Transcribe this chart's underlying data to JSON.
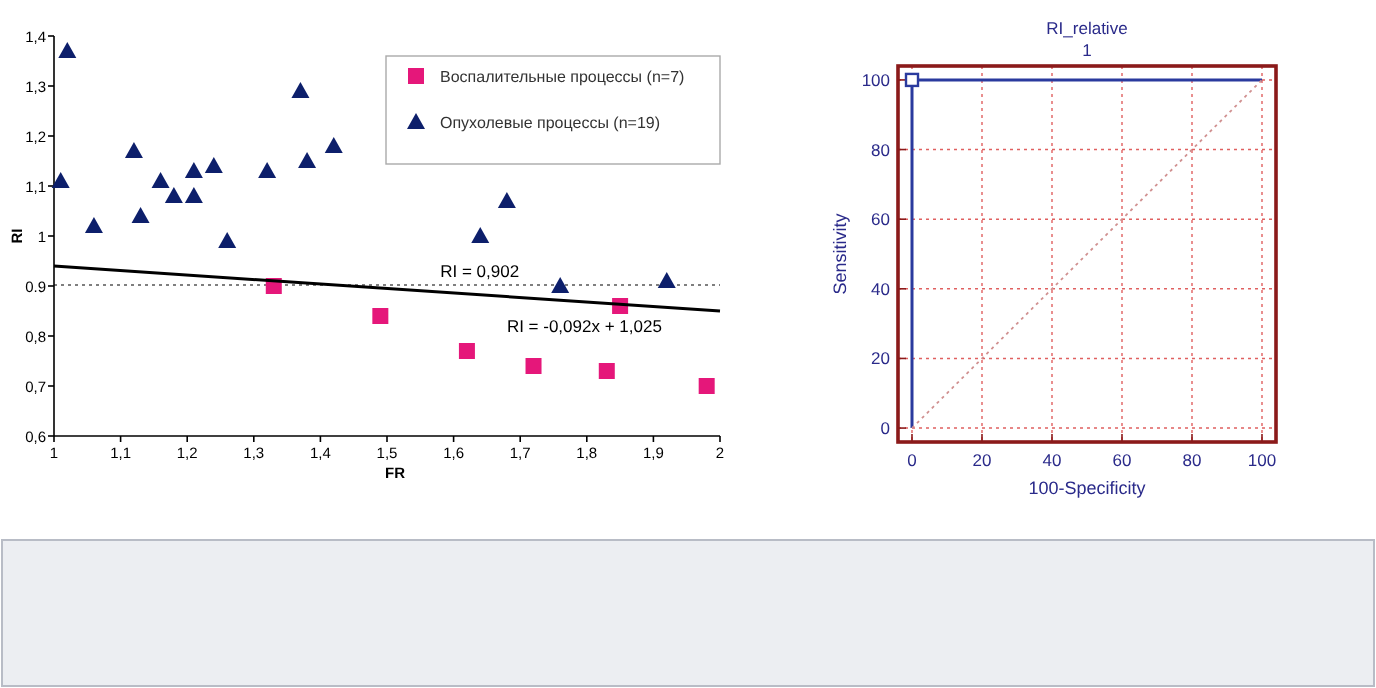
{
  "chart_data": [
    {
      "type": "scatter",
      "xlabel": "FR",
      "ylabel": "RI",
      "xlim": [
        1,
        2
      ],
      "ylim": [
        0.6,
        1.4
      ],
      "xticks": [
        1,
        {
          "value": 1.1,
          "label": "1,1"
        },
        {
          "value": 1.2,
          "label": "1,2"
        },
        {
          "value": 1.3,
          "label": "1,3"
        },
        {
          "value": 1.4,
          "label": "1,4"
        },
        {
          "value": 1.5,
          "label": "1,5"
        },
        {
          "value": 1.6,
          "label": "1,6"
        },
        {
          "value": 1.7,
          "label": "1,7"
        },
        {
          "value": 1.8,
          "label": "1,8"
        },
        {
          "value": 1.9,
          "label": "1,9"
        },
        2
      ],
      "yticks": [
        {
          "value": 0.6,
          "label": "0,6"
        },
        {
          "value": 0.7,
          "label": "0,7"
        },
        {
          "value": 0.8,
          "label": "0,8"
        },
        {
          "value": 0.9,
          "label": "0.9"
        },
        1,
        {
          "value": 1.1,
          "label": "1,1"
        },
        {
          "value": 1.2,
          "label": "1,2"
        },
        {
          "value": 1.3,
          "label": "1,3"
        },
        {
          "value": 1.4,
          "label": "1,4"
        }
      ],
      "legend": "top right",
      "series": [
        {
          "name": "Воспалительные процессы (n=7)",
          "color": "#e5177a",
          "marker": "square",
          "x": [
            1.33,
            1.49,
            1.62,
            1.72,
            1.83,
            1.85,
            1.98
          ],
          "values": [
            0.9,
            0.84,
            0.77,
            0.74,
            0.73,
            0.86,
            0.7
          ]
        },
        {
          "name": "Опухолевые процессы (n=19)",
          "color": "#0d1f6b",
          "marker": "triangle",
          "x": [
            1.01,
            1.02,
            1.06,
            1.12,
            1.13,
            1.16,
            1.18,
            1.21,
            1.21,
            1.24,
            1.26,
            1.32,
            1.37,
            1.38,
            1.42,
            1.64,
            1.68,
            1.76,
            1.92
          ],
          "values": [
            1.11,
            1.37,
            1.02,
            1.17,
            1.04,
            1.11,
            1.08,
            1.08,
            1.13,
            1.14,
            0.99,
            1.13,
            1.29,
            1.15,
            1.18,
            1.0,
            1.07,
            0.9,
            0.91
          ]
        },
        {
          "type": "line",
          "color": "#000000",
          "x": [
            1,
            2
          ],
          "values": [
            0.94,
            0.85
          ]
        }
      ],
      "ref_lines": [
        {
          "axis": "y",
          "value": 0.902,
          "label": "RI = 0,902",
          "line_style": "dotted",
          "color": "#555555"
        }
      ],
      "annotations": [
        "RI = -0,092x + 1,025"
      ]
    },
    {
      "type": "line",
      "title": "RI_relative",
      "subtitle": "1",
      "xlabel": "100-Specificity",
      "ylabel": "Sensitivity",
      "xlim": [
        -4,
        104
      ],
      "ylim": [
        -4,
        104
      ],
      "xticks": [
        0,
        20,
        40,
        60,
        80,
        100
      ],
      "yticks": [
        0,
        20,
        40,
        60,
        80,
        100
      ],
      "grid": true,
      "series": [
        {
          "color": "#2a3a9e",
          "x": [
            0,
            0,
            100
          ],
          "values": [
            0,
            100,
            100
          ]
        },
        {
          "type": "scatter",
          "color": "#2a3a9e",
          "marker": "square",
          "x": [
            0
          ],
          "values": [
            100
          ]
        },
        {
          "color": "#d09090",
          "line_style": "dotted",
          "x": [
            0,
            100
          ],
          "values": [
            0,
            100
          ]
        }
      ]
    }
  ]
}
